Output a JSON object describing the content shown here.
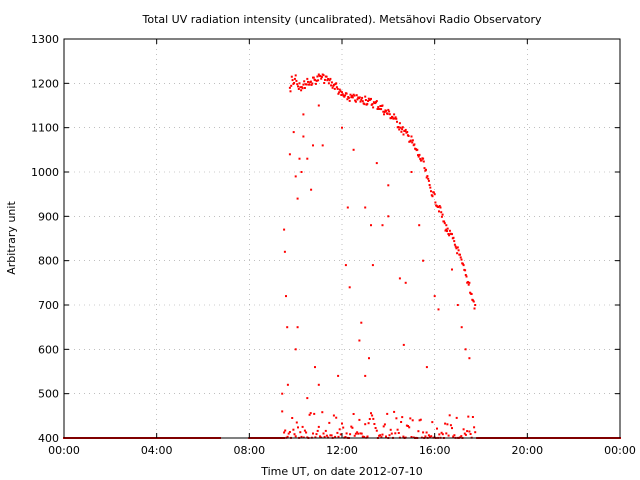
{
  "chart_data": {
    "type": "scatter",
    "title": "Total UV radiation intensity (uncalibrated). Metsähovi Radio Observatory",
    "xlabel": "Time UT, on date 2012-07-10",
    "ylabel": "Arbitrary unit",
    "xlim": [
      "00:00",
      "24:00"
    ],
    "ylim": [
      400,
      1300
    ],
    "x_ticks": [
      "00:00",
      "04:00",
      "08:00",
      "12:00",
      "16:00",
      "20:00",
      "00:00"
    ],
    "y_ticks": [
      400,
      500,
      600,
      700,
      800,
      900,
      1000,
      1100,
      1200,
      1300
    ],
    "grid": true,
    "legend": "none",
    "series_color": "#ff0000",
    "upper_envelope": [
      [
        "09:45",
        1190
      ],
      [
        "09:50",
        1215
      ],
      [
        "10:00",
        1218
      ],
      [
        "10:10",
        1200
      ],
      [
        "10:30",
        1210
      ],
      [
        "10:45",
        1213
      ],
      [
        "11:00",
        1220
      ],
      [
        "11:10",
        1220
      ],
      [
        "11:20",
        1215
      ],
      [
        "11:30",
        1210
      ],
      [
        "11:45",
        1200
      ],
      [
        "12:00",
        1180
      ],
      [
        "13:00",
        1170
      ],
      [
        "13:15",
        1165
      ],
      [
        "13:30",
        1160
      ],
      [
        "13:45",
        1150
      ],
      [
        "14:00",
        1140
      ],
      [
        "14:15",
        1130
      ],
      [
        "14:30",
        1110
      ],
      [
        "14:45",
        1095
      ],
      [
        "15:00",
        1080
      ],
      [
        "15:15",
        1050
      ],
      [
        "15:30",
        1030
      ],
      [
        "15:45",
        980
      ],
      [
        "16:00",
        950
      ],
      [
        "16:15",
        920
      ],
      [
        "16:30",
        880
      ],
      [
        "16:45",
        860
      ],
      [
        "17:00",
        830
      ],
      [
        "17:15",
        790
      ],
      [
        "17:30",
        750
      ],
      [
        "17:45",
        700
      ]
    ],
    "scattered_points": [
      [
        "09:30",
        870
      ],
      [
        "09:32",
        820
      ],
      [
        "09:35",
        720
      ],
      [
        "09:38",
        650
      ],
      [
        "09:40",
        520
      ],
      [
        "09:45",
        1040
      ],
      [
        "09:55",
        1090
      ],
      [
        "10:00",
        990
      ],
      [
        "10:05",
        940
      ],
      [
        "10:10",
        1030
      ],
      [
        "10:15",
        1000
      ],
      [
        "10:20",
        1080
      ],
      [
        "10:20",
        1130
      ],
      [
        "10:30",
        1030
      ],
      [
        "10:40",
        960
      ],
      [
        "10:45",
        1060
      ],
      [
        "11:00",
        1150
      ],
      [
        "11:10",
        1060
      ],
      [
        "10:50",
        560
      ],
      [
        "11:00",
        520
      ],
      [
        "10:00",
        600
      ],
      [
        "10:05",
        650
      ],
      [
        "12:00",
        1100
      ],
      [
        "12:30",
        1050
      ],
      [
        "12:15",
        920
      ],
      [
        "12:20",
        740
      ],
      [
        "12:10",
        790
      ],
      [
        "13:00",
        920
      ],
      [
        "13:15",
        880
      ],
      [
        "13:30",
        1020
      ],
      [
        "13:45",
        880
      ],
      [
        "14:00",
        900
      ],
      [
        "14:00",
        970
      ],
      [
        "14:30",
        760
      ],
      [
        "14:40",
        610
      ],
      [
        "14:45",
        750
      ],
      [
        "15:00",
        1000
      ],
      [
        "15:20",
        880
      ],
      [
        "15:30",
        800
      ],
      [
        "15:40",
        560
      ],
      [
        "16:00",
        720
      ],
      [
        "16:10",
        690
      ],
      [
        "16:30",
        870
      ],
      [
        "16:45",
        780
      ],
      [
        "17:00",
        700
      ],
      [
        "17:10",
        650
      ],
      [
        "17:20",
        600
      ],
      [
        "17:30",
        580
      ],
      [
        "12:45",
        620
      ],
      [
        "12:50",
        660
      ],
      [
        "13:00",
        540
      ],
      [
        "13:10",
        580
      ],
      [
        "13:20",
        790
      ],
      [
        "11:50",
        540
      ],
      [
        "10:30",
        490
      ],
      [
        "09:25",
        460
      ],
      [
        "09:25",
        500
      ]
    ],
    "baseline_segments": [
      {
        "from": "00:00",
        "to": "06:45",
        "value": 400
      },
      {
        "from": "08:00",
        "to": "09:30",
        "value": 400
      },
      {
        "from": "17:50",
        "to": "24:00",
        "value": 400
      }
    ],
    "low_band": {
      "from": "09:30",
      "to": "17:45",
      "min": 400,
      "max": 460
    }
  }
}
